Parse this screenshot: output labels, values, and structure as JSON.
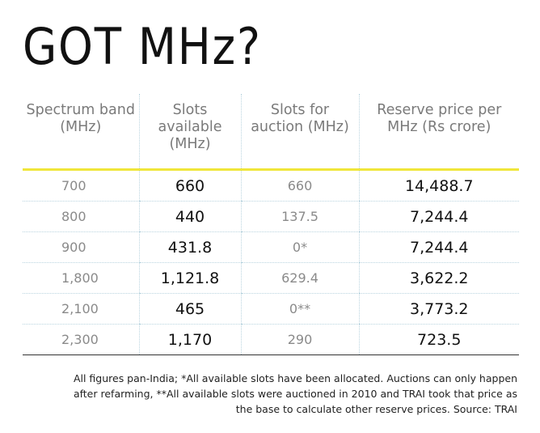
{
  "title": "GOT MHz?",
  "table": {
    "headers": [
      "Spectrum band (MHz)",
      "Slots available (MHz)",
      "Slots for auction (MHz)",
      "Reserve price per MHz (Rs crore)"
    ],
    "rows": [
      {
        "band": "700",
        "available": "660",
        "auction": "660",
        "price": "14,488.7"
      },
      {
        "band": "800",
        "available": "440",
        "auction": "137.5",
        "price": "7,244.4"
      },
      {
        "band": "900",
        "available": "431.8",
        "auction": "0*",
        "price": "7,244.4"
      },
      {
        "band": "1,800",
        "available": "1,121.8",
        "auction": "629.4",
        "price": "3,622.2"
      },
      {
        "band": "2,100",
        "available": "465",
        "auction": "0**",
        "price": "3,773.2"
      },
      {
        "band": "2,300",
        "available": "1,170",
        "auction": "290",
        "price": "723.5"
      }
    ]
  },
  "footnote": "All figures pan-India; *All available slots have been allocated. Auctions can only happen after refarming, **All available slots were auctioned in 2010 and TRAI took that price as the base to calculate other reserve prices. Source: TRAI",
  "colors": {
    "header_rule": "#f0e63a",
    "column_dividers": "#b9d4df"
  }
}
